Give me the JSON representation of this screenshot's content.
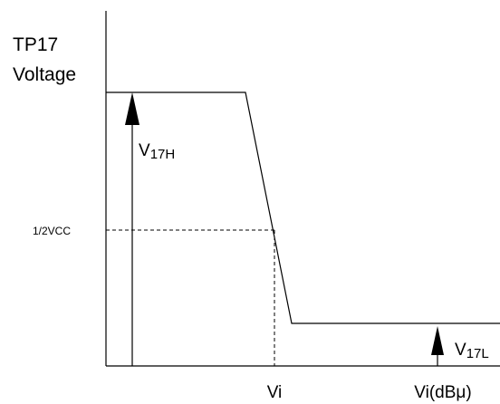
{
  "axis": {
    "y_label": [
      "TP17",
      "Voltage"
    ],
    "x_label": "Vi(dBμ)"
  },
  "levels": {
    "high": {
      "main": "V",
      "sub": "17H"
    },
    "low": {
      "main": "V",
      "sub": "17L"
    },
    "mid": "1/2VCC"
  },
  "threshold": "Vi"
}
